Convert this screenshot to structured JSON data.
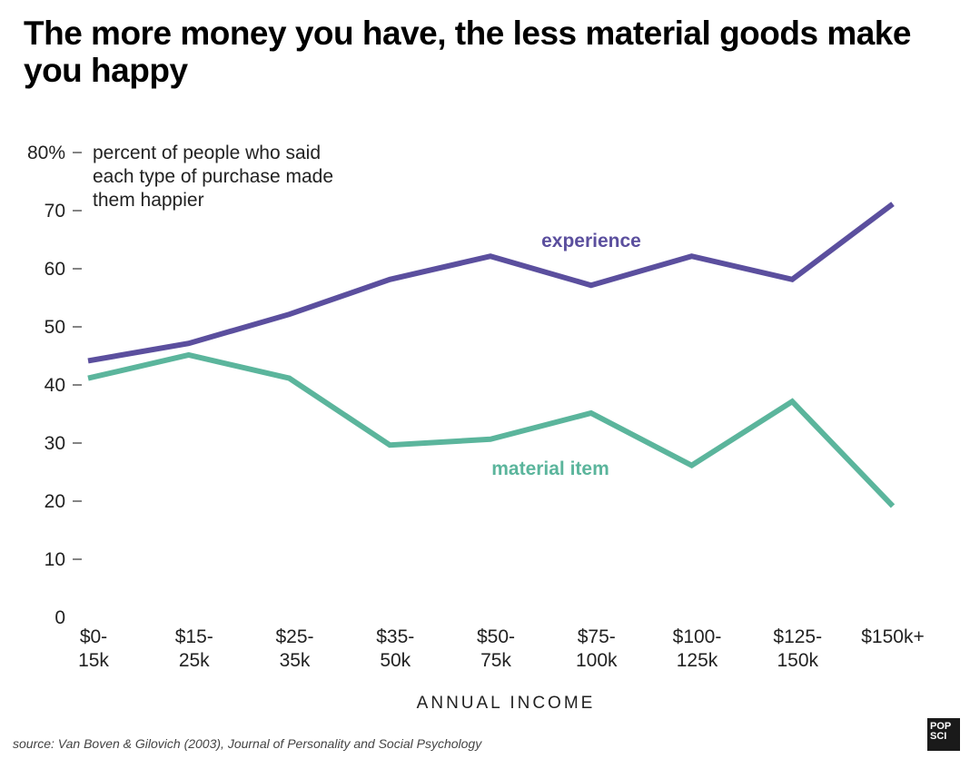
{
  "title": "The more money you have, the less material goods make you happy",
  "source": "source: Van Boven & Gilovich (2003), Journal of Personality and Social Psychology",
  "logo": {
    "line1": "POP",
    "line2": "SCI"
  },
  "chart_data": {
    "type": "line",
    "title": "The more money you have, the less material goods make you happy",
    "xlabel": "ANNUAL INCOME",
    "ylabel": "percent of people who said each type of purchase made them happier",
    "ylabel_lines": [
      "percent of people who said",
      "each type of purchase made",
      "them happier"
    ],
    "ylim": [
      0,
      80
    ],
    "yticks": [
      0,
      10,
      20,
      30,
      40,
      50,
      60,
      70,
      80
    ],
    "ytick_labels": [
      "0",
      "10",
      "20",
      "30",
      "40",
      "50",
      "60",
      "70",
      "80%"
    ],
    "grid": false,
    "categories": [
      [
        "$0-",
        "15k"
      ],
      [
        "$15-",
        "25k"
      ],
      [
        "$25-",
        "35k"
      ],
      [
        "$35-",
        "50k"
      ],
      [
        "$50-",
        "75k"
      ],
      [
        "$75-",
        "100k"
      ],
      [
        "$100-",
        "125k"
      ],
      [
        "$125-",
        "150k"
      ],
      [
        "$150k+",
        ""
      ]
    ],
    "series": [
      {
        "name": "experience",
        "color": "#5b4f9e",
        "values": [
          44,
          47,
          52,
          58,
          62,
          57,
          62,
          58,
          71
        ]
      },
      {
        "name": "material item",
        "color": "#5bb59c",
        "values": [
          41,
          45,
          41,
          29.5,
          30.5,
          35,
          26,
          37,
          19
        ]
      }
    ]
  }
}
